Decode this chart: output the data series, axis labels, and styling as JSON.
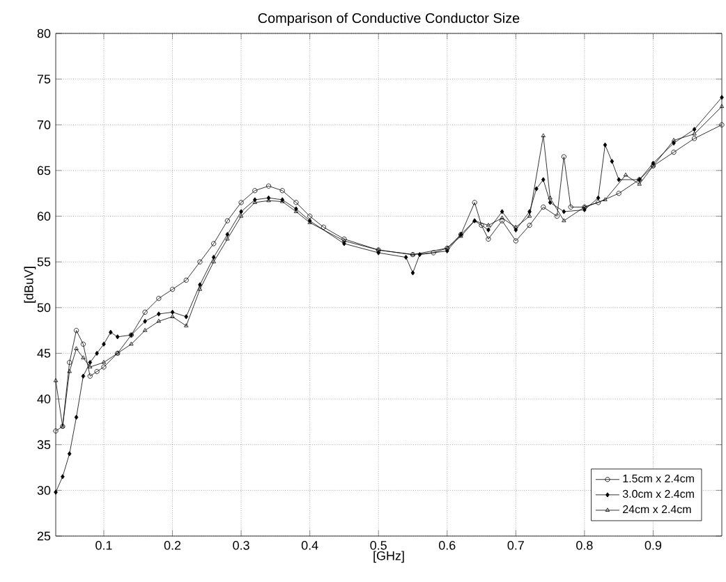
{
  "chart_data": {
    "type": "line",
    "title": "Comparison of Conductive Conductor Size",
    "xlabel": "[GHz]",
    "ylabel": "[dBuV]",
    "xlim": [
      0.03,
      1.0
    ],
    "ylim": [
      25,
      80
    ],
    "xticks": [
      0.1,
      0.2,
      0.3,
      0.4,
      0.5,
      0.6,
      0.7,
      0.8,
      0.9
    ],
    "yticks": [
      25,
      30,
      35,
      40,
      45,
      50,
      55,
      60,
      65,
      70,
      75,
      80
    ],
    "grid": true,
    "legend": "bottom right",
    "line_style": "solid",
    "series": [
      {
        "name": "1.5cm x 2.4cm",
        "color": "#000000",
        "marker": "circle",
        "x": [
          0.03,
          0.04,
          0.05,
          0.06,
          0.07,
          0.08,
          0.09,
          0.1,
          0.12,
          0.14,
          0.16,
          0.18,
          0.2,
          0.22,
          0.24,
          0.26,
          0.28,
          0.3,
          0.32,
          0.34,
          0.36,
          0.38,
          0.4,
          0.42,
          0.45,
          0.5,
          0.55,
          0.58,
          0.6,
          0.62,
          0.64,
          0.65,
          0.66,
          0.68,
          0.7,
          0.72,
          0.74,
          0.76,
          0.77,
          0.78,
          0.8,
          0.82,
          0.85,
          0.88,
          0.9,
          0.93,
          0.96,
          1.0
        ],
        "values": [
          36.5,
          37,
          44,
          47.5,
          46,
          42.5,
          43,
          43.5,
          45,
          47,
          49.5,
          51,
          52,
          53,
          55,
          57,
          59.5,
          61.5,
          62.8,
          63.3,
          62.8,
          61.5,
          60,
          58.8,
          57.5,
          56.3,
          55.8,
          56,
          56.5,
          58,
          61.5,
          59,
          57.5,
          59.5,
          57.3,
          59,
          61,
          60,
          66.5,
          61,
          61,
          61.5,
          62.5,
          64,
          65.5,
          67,
          68.5,
          70
        ]
      },
      {
        "name": "3.0cm x 2.4cm",
        "color": "#000000",
        "marker": "diamond",
        "x": [
          0.03,
          0.04,
          0.05,
          0.06,
          0.07,
          0.08,
          0.09,
          0.1,
          0.11,
          0.12,
          0.14,
          0.16,
          0.18,
          0.2,
          0.22,
          0.24,
          0.26,
          0.28,
          0.3,
          0.32,
          0.34,
          0.36,
          0.38,
          0.4,
          0.45,
          0.5,
          0.54,
          0.55,
          0.56,
          0.6,
          0.62,
          0.64,
          0.66,
          0.68,
          0.7,
          0.72,
          0.73,
          0.74,
          0.75,
          0.77,
          0.8,
          0.82,
          0.83,
          0.84,
          0.85,
          0.88,
          0.9,
          0.93,
          0.96,
          1.0
        ],
        "values": [
          29.8,
          31.5,
          34,
          38,
          42.5,
          44,
          45,
          46,
          47.3,
          46.8,
          47,
          48.5,
          49.3,
          49.5,
          49,
          52.5,
          55.5,
          58,
          60.5,
          61.8,
          62,
          61.8,
          60.8,
          59.5,
          57,
          56,
          55.5,
          53.8,
          55.8,
          56.2,
          58,
          59.5,
          58.5,
          60.5,
          58.5,
          60.5,
          63,
          64,
          61.5,
          60.5,
          60.7,
          62,
          67.8,
          66,
          64,
          64,
          65.8,
          68,
          69.5,
          73
        ]
      },
      {
        "name": "24cm x 2.4cm",
        "color": "#000000",
        "marker": "triangle",
        "x": [
          0.03,
          0.04,
          0.05,
          0.06,
          0.07,
          0.08,
          0.1,
          0.12,
          0.14,
          0.16,
          0.18,
          0.2,
          0.22,
          0.24,
          0.26,
          0.28,
          0.3,
          0.32,
          0.34,
          0.36,
          0.38,
          0.4,
          0.45,
          0.5,
          0.55,
          0.6,
          0.62,
          0.64,
          0.66,
          0.68,
          0.7,
          0.72,
          0.74,
          0.75,
          0.77,
          0.8,
          0.83,
          0.86,
          0.88,
          0.9,
          0.93,
          0.96,
          1.0
        ],
        "values": [
          42,
          37,
          43,
          45.5,
          44.5,
          43.5,
          44,
          45,
          46,
          47.5,
          48.5,
          49,
          48,
          52,
          55,
          57.5,
          60,
          61.5,
          61.7,
          61.6,
          60.5,
          59.3,
          57.3,
          56.3,
          55.8,
          56.5,
          57.8,
          59.5,
          59,
          59.8,
          58.8,
          60,
          68.8,
          62,
          59.5,
          61,
          61.8,
          64.5,
          63.5,
          65.5,
          68.3,
          69,
          72
        ]
      }
    ]
  }
}
